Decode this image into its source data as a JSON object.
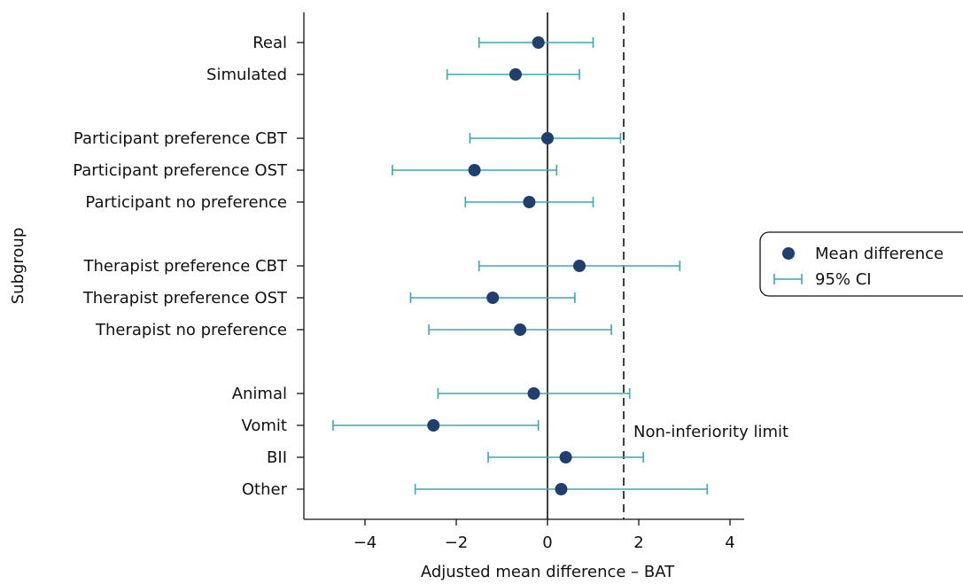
{
  "chart_data": {
    "type": "forest",
    "xlabel": "Adjusted mean difference – BAT",
    "ylabel": "Subgroup",
    "xlim": [
      -5.3,
      4.3
    ],
    "xticks": [
      -4,
      -2,
      0,
      2,
      4
    ],
    "xtick_labels": [
      "−4",
      "−2",
      "0",
      "2",
      "4"
    ],
    "reference_line": 0,
    "non_inferiority_limit": 1.67,
    "non_inferiority_label": "Non-inferiority limit",
    "legend": {
      "position": "right",
      "items": [
        "Mean difference",
        "95% CI"
      ]
    },
    "colors": {
      "point": "#1f3f6e",
      "ci": "#3aa8ad"
    },
    "groups": [
      {
        "rows": [
          {
            "label": "Real",
            "mean": -0.2,
            "lo": -1.5,
            "hi": 1.0
          },
          {
            "label": "Simulated",
            "mean": -0.7,
            "lo": -2.2,
            "hi": 0.7
          }
        ]
      },
      {
        "rows": [
          {
            "label": "Participant preference CBT",
            "mean": 0.0,
            "lo": -1.7,
            "hi": 1.6
          },
          {
            "label": "Participant preference OST",
            "mean": -1.6,
            "lo": -3.4,
            "hi": 0.2
          },
          {
            "label": "Participant no preference",
            "mean": -0.4,
            "lo": -1.8,
            "hi": 1.0
          }
        ]
      },
      {
        "rows": [
          {
            "label": "Therapist preference CBT",
            "mean": 0.7,
            "lo": -1.5,
            "hi": 2.9
          },
          {
            "label": "Therapist preference OST",
            "mean": -1.2,
            "lo": -3.0,
            "hi": 0.6
          },
          {
            "label": "Therapist no preference",
            "mean": -0.6,
            "lo": -2.6,
            "hi": 1.4
          }
        ]
      },
      {
        "rows": [
          {
            "label": "Animal",
            "mean": -0.3,
            "lo": -2.4,
            "hi": 1.8
          },
          {
            "label": "Vomit",
            "mean": -2.5,
            "lo": -4.7,
            "hi": -0.2
          },
          {
            "label": "BII",
            "mean": 0.4,
            "lo": -1.3,
            "hi": 2.1
          },
          {
            "label": "Other",
            "mean": 0.3,
            "lo": -2.9,
            "hi": 3.5
          }
        ]
      }
    ]
  }
}
